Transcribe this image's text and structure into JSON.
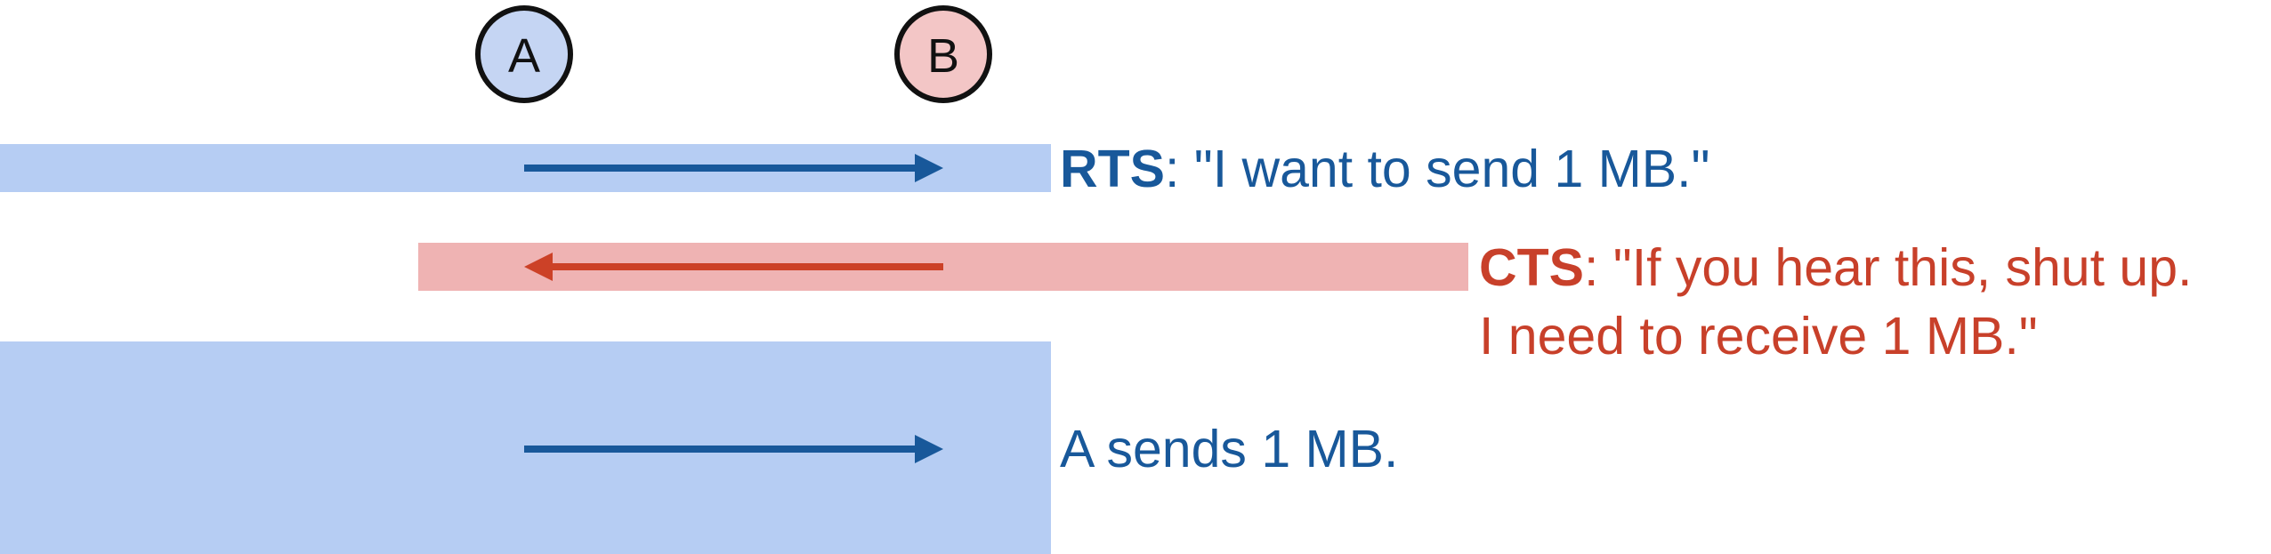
{
  "nodes": [
    {
      "label": "A",
      "fill": "#c5d5f3"
    },
    {
      "label": "B",
      "fill": "#f3c6c6"
    }
  ],
  "colors": {
    "blue_band": "#b6cdf3",
    "red_band": "#efb3b3",
    "blue_arrow": "#18589a",
    "red_arrow": "#cc4127",
    "blue_text": "#18589a",
    "red_text": "#c8402a",
    "node_stroke": "#111111",
    "node_text": "#111111"
  },
  "steps": [
    {
      "id": "rts",
      "direction": "A-to-B",
      "keyword": "RTS",
      "text": ": \"I want to send 1 MB.\""
    },
    {
      "id": "cts",
      "direction": "B-to-A",
      "keyword": "CTS",
      "text_line1": ": \"If you hear this, shut up.",
      "text_line2": "I need to receive 1 MB.\""
    },
    {
      "id": "data",
      "direction": "A-to-B",
      "text": "A sends 1 MB."
    }
  ]
}
